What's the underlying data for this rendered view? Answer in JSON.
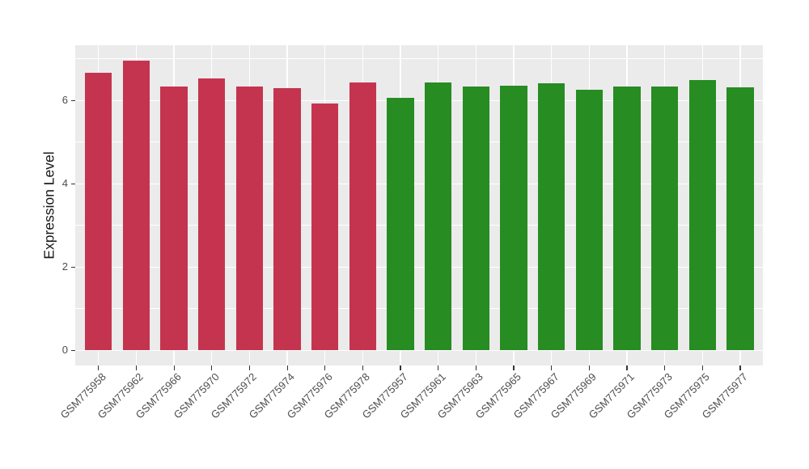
{
  "style": {
    "page_background": "#FFFFFF",
    "panel_background": "#EBEBEB",
    "gridline_color": "#FFFFFF",
    "axis_text_color": "#4D4D4D",
    "axis_title_color": "#1A1A1A",
    "tick_mark_color": "#333333",
    "bar_red": "#C4344F",
    "bar_green": "#278C22"
  },
  "chart_data": {
    "type": "bar",
    "title": "",
    "xlabel": "",
    "ylabel": "Expression Level",
    "ylim": [
      -0.36,
      7.33
    ],
    "yticks": [
      0,
      2,
      4,
      6
    ],
    "y_minor_gridlines": [
      1,
      3,
      5,
      7
    ],
    "grid": true,
    "legend_position": "none",
    "panel_style": "ggplot2-gray",
    "x_tick_label_angle": 45,
    "categories": [
      "GSM775958",
      "GSM775962",
      "GSM775966",
      "GSM775970",
      "GSM775972",
      "GSM775974",
      "GSM775976",
      "GSM775978",
      "GSM775957",
      "GSM775961",
      "GSM775963",
      "GSM775965",
      "GSM775967",
      "GSM775969",
      "GSM775971",
      "GSM775973",
      "GSM775975",
      "GSM775977"
    ],
    "values": [
      6.66,
      6.95,
      6.33,
      6.52,
      6.34,
      6.3,
      5.92,
      6.43,
      6.06,
      6.44,
      6.33,
      6.36,
      6.41,
      6.26,
      6.34,
      6.34,
      6.49,
      6.32
    ],
    "series": [
      {
        "name": "group-red",
        "color": "#C4344F",
        "categories": [
          "GSM775958",
          "GSM775962",
          "GSM775966",
          "GSM775970",
          "GSM775972",
          "GSM775974",
          "GSM775976",
          "GSM775978"
        ]
      },
      {
        "name": "group-green",
        "color": "#278C22",
        "categories": [
          "GSM775957",
          "GSM775961",
          "GSM775963",
          "GSM775965",
          "GSM775967",
          "GSM775969",
          "GSM775971",
          "GSM775973",
          "GSM775975",
          "GSM775977"
        ]
      }
    ],
    "bar_colors": [
      "#C4344F",
      "#C4344F",
      "#C4344F",
      "#C4344F",
      "#C4344F",
      "#C4344F",
      "#C4344F",
      "#C4344F",
      "#278C22",
      "#278C22",
      "#278C22",
      "#278C22",
      "#278C22",
      "#278C22",
      "#278C22",
      "#278C22",
      "#278C22",
      "#278C22"
    ]
  }
}
